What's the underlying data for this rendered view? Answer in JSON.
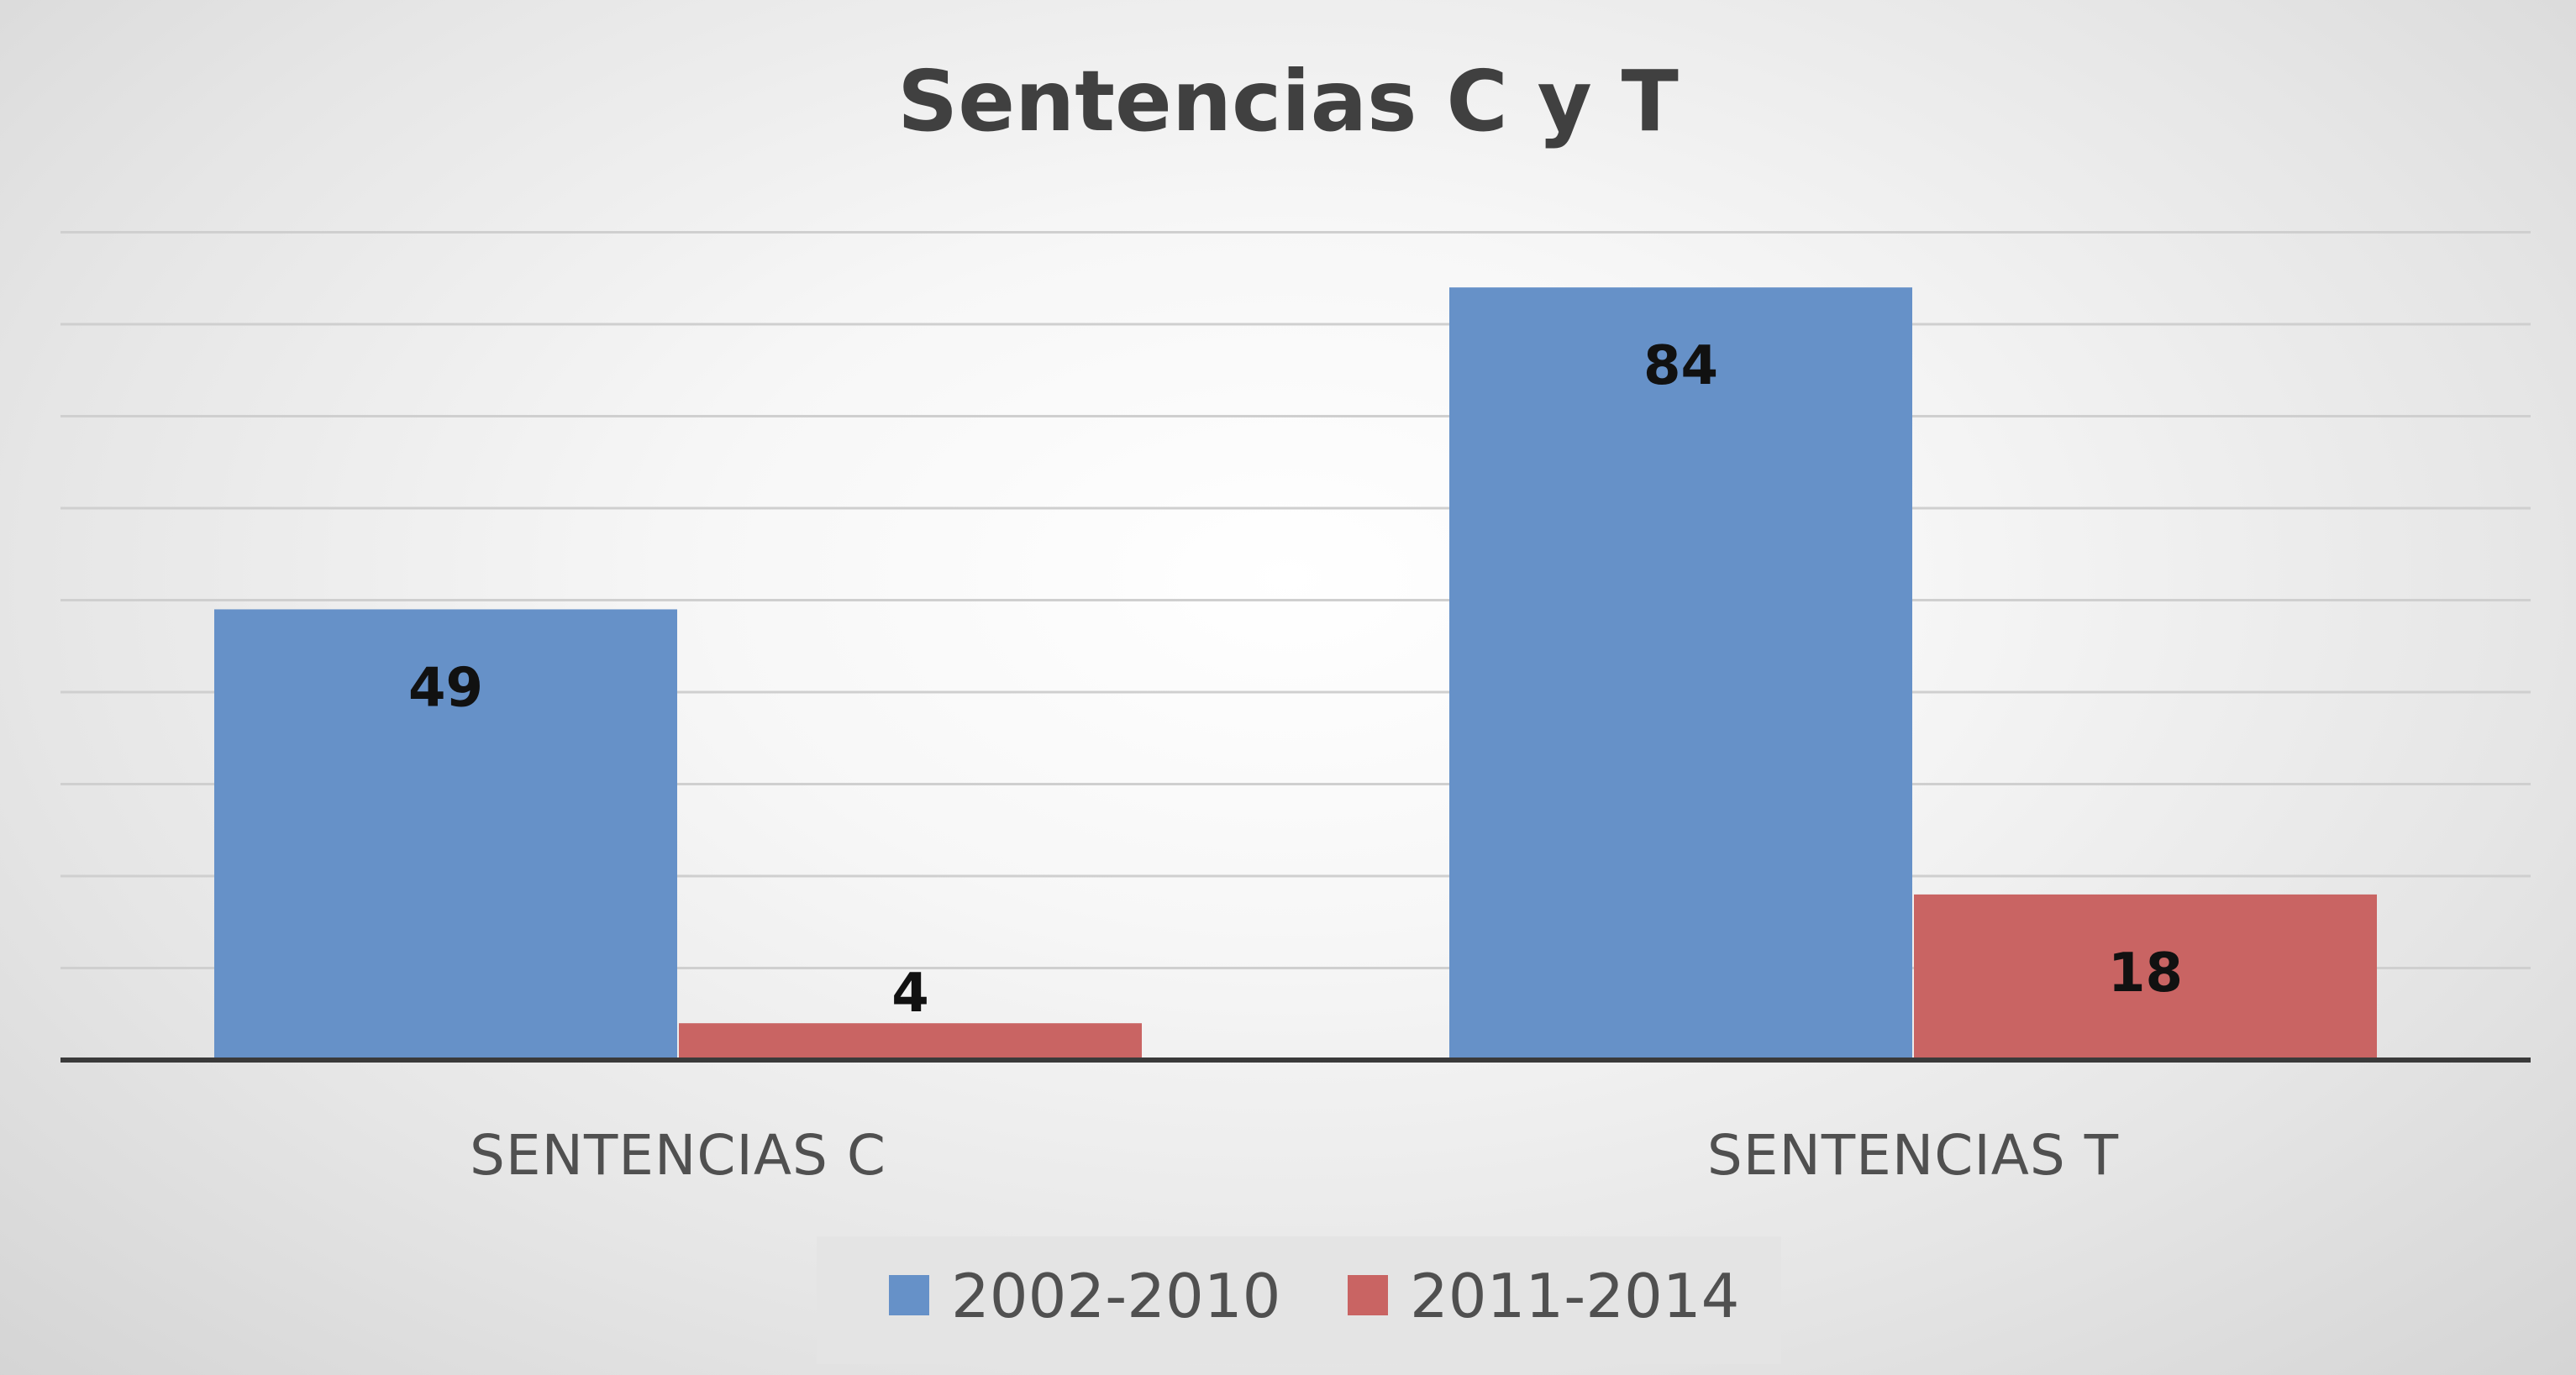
{
  "chart_data": {
    "type": "bar",
    "title": "Sentencias C y T",
    "categories": [
      "SENTENCIAS C",
      "SENTENCIAS T"
    ],
    "series": [
      {
        "name": "2002-2010",
        "values": [
          49,
          84
        ],
        "color": "#6691c8"
      },
      {
        "name": "2011-2014",
        "values": [
          4,
          18
        ],
        "color": "#c96463"
      }
    ],
    "xlabel": "",
    "ylabel": "",
    "ylim": [
      0,
      90
    ],
    "y_gridline_step": 10,
    "grid": true,
    "y_axis_labels_visible": false,
    "legend_position": "bottom",
    "data_labels": "inside-end"
  }
}
